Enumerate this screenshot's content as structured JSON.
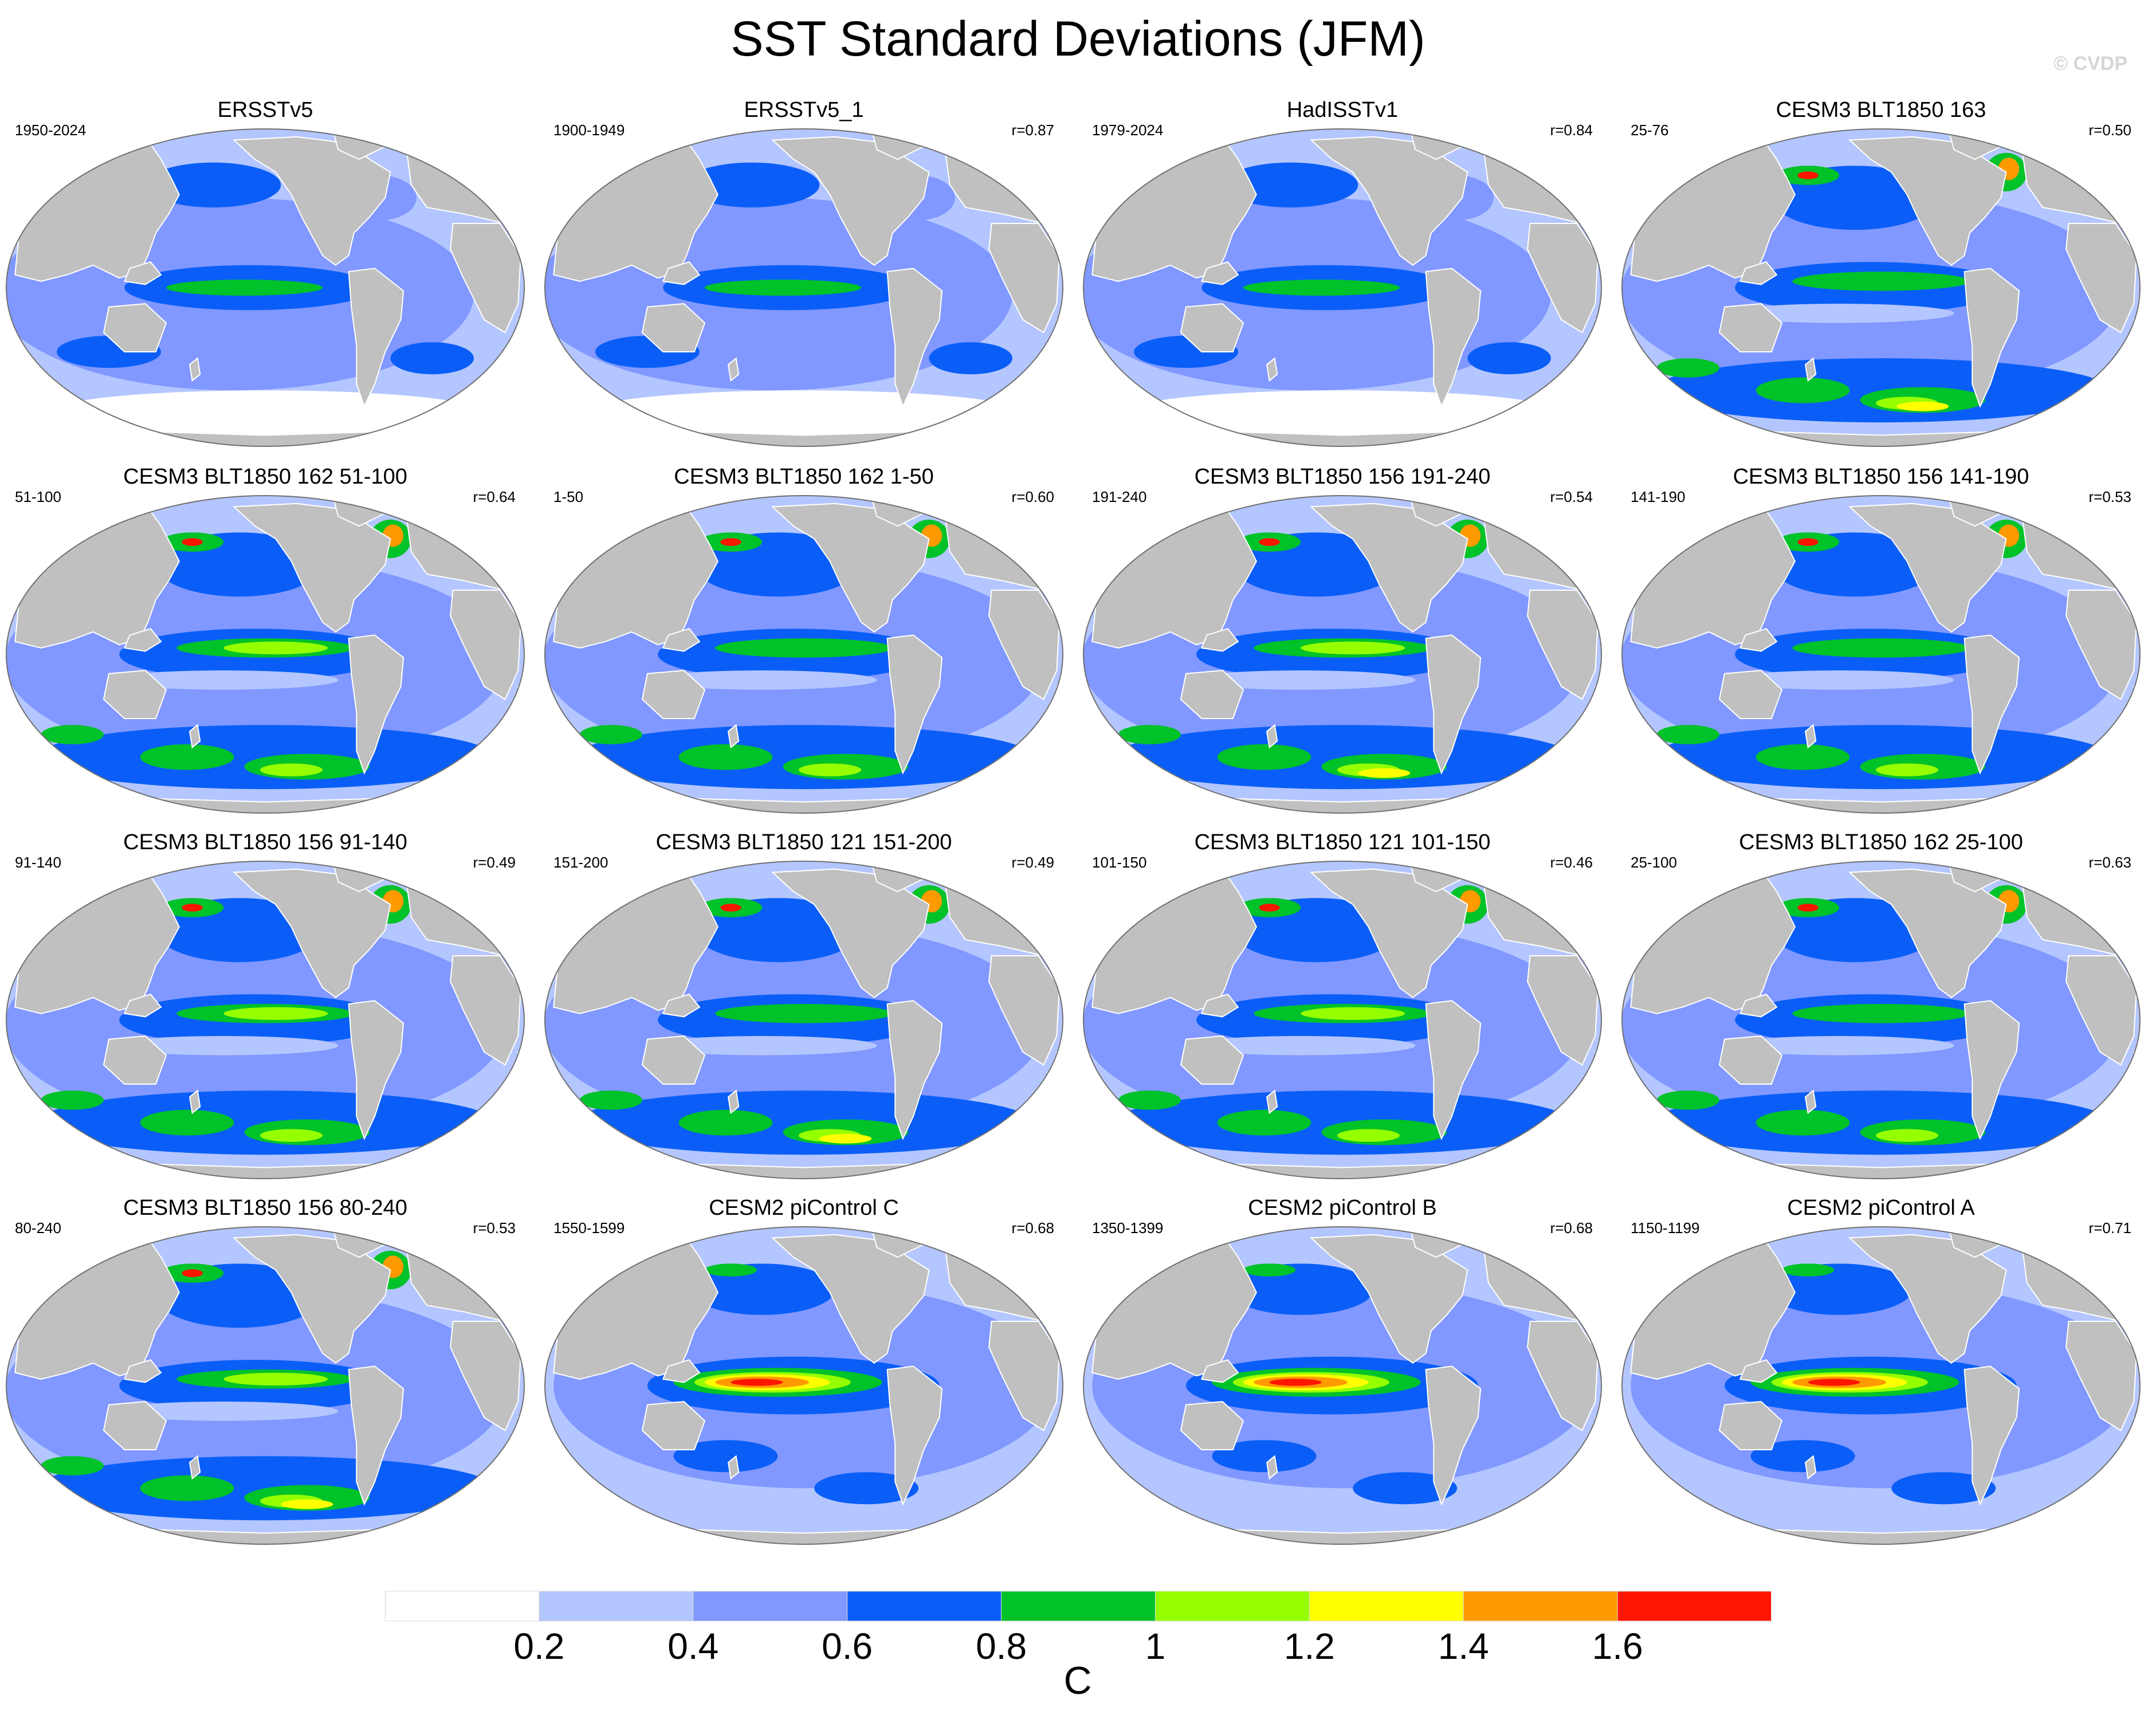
{
  "title": "SST Standard Deviations (JFM)",
  "watermark": "© CVDP",
  "panels": [
    {
      "title": "ERSSTv5",
      "period": "1950-2024",
      "r": "",
      "style": "obs"
    },
    {
      "title": "ERSSTv5_1",
      "period": "1900-1949",
      "r": "r=0.87",
      "style": "obs"
    },
    {
      "title": "HadISSTv1",
      "period": "1979-2024",
      "r": "r=0.84",
      "style": "obs"
    },
    {
      "title": "CESM3 BLT1850 163",
      "period": "25-76",
      "r": "r=0.50",
      "style": "cesm3"
    },
    {
      "title": "CESM3 BLT1850 162 51-100",
      "period": "51-100",
      "r": "r=0.64",
      "style": "cesm3"
    },
    {
      "title": "CESM3 BLT1850 162 1-50",
      "period": "1-50",
      "r": "r=0.60",
      "style": "cesm3"
    },
    {
      "title": "CESM3 BLT1850 156 191-240",
      "period": "191-240",
      "r": "r=0.54",
      "style": "cesm3"
    },
    {
      "title": "CESM3 BLT1850 156 141-190",
      "period": "141-190",
      "r": "r=0.53",
      "style": "cesm3"
    },
    {
      "title": "CESM3 BLT1850 156 91-140",
      "period": "91-140",
      "r": "r=0.49",
      "style": "cesm3"
    },
    {
      "title": "CESM3 BLT1850 121 151-200",
      "period": "151-200",
      "r": "r=0.49",
      "style": "cesm3"
    },
    {
      "title": "CESM3 BLT1850 121 101-150",
      "period": "101-150",
      "r": "r=0.46",
      "style": "cesm3"
    },
    {
      "title": "CESM3 BLT1850 162 25-100",
      "period": "25-100",
      "r": "r=0.63",
      "style": "cesm3"
    },
    {
      "title": "CESM3 BLT1850 156 80-240",
      "period": "80-240",
      "r": "r=0.53",
      "style": "cesm3"
    },
    {
      "title": "CESM2 piControl C",
      "period": "1550-1599",
      "r": "r=0.68",
      "style": "cesm2"
    },
    {
      "title": "CESM2 piControl B",
      "period": "1350-1399",
      "r": "r=0.68",
      "style": "cesm2"
    },
    {
      "title": "CESM2 piControl A",
      "period": "1150-1199",
      "r": "r=0.71",
      "style": "cesm2"
    }
  ],
  "colorbar": {
    "colors": [
      "#ffffff",
      "#b4c6ff",
      "#8098ff",
      "#0a5ef7",
      "#00c229",
      "#95ff00",
      "#ffff00",
      "#ff9a00",
      "#ff1500"
    ],
    "labels": [
      "0.2",
      "0.4",
      "0.6",
      "0.8",
      "1",
      "1.2",
      "1.4",
      "1.6"
    ],
    "unit": "C"
  },
  "land_color": "#c0c0c0"
}
